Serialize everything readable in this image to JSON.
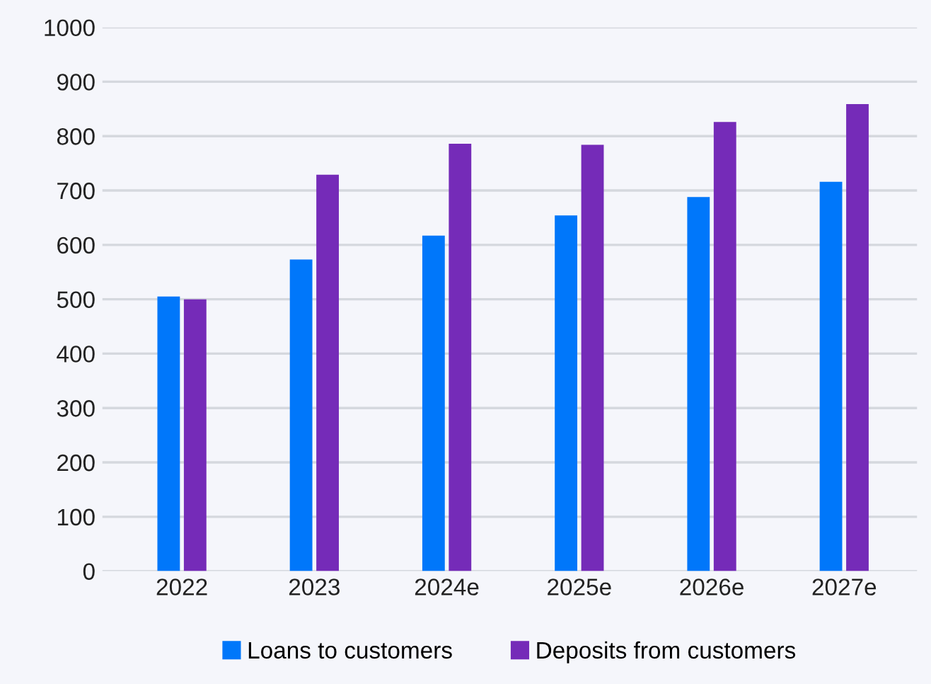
{
  "chart_data": {
    "type": "bar",
    "categories": [
      "2022",
      "2023",
      "2024e",
      "2025e",
      "2026e",
      "2027e"
    ],
    "series": [
      {
        "name": "Loans to customers",
        "color": "#0077fa",
        "values": [
          505,
          573,
          617,
          654,
          688,
          716
        ]
      },
      {
        "name": "Deposits from customers",
        "color": "#752bb8",
        "values": [
          500,
          729,
          786,
          784,
          826,
          859
        ]
      }
    ],
    "ylim": [
      0,
      1000
    ],
    "yticks": [
      0,
      100,
      200,
      300,
      400,
      500,
      600,
      700,
      800,
      900,
      1000
    ],
    "grid": "y",
    "legend": "bottom"
  }
}
